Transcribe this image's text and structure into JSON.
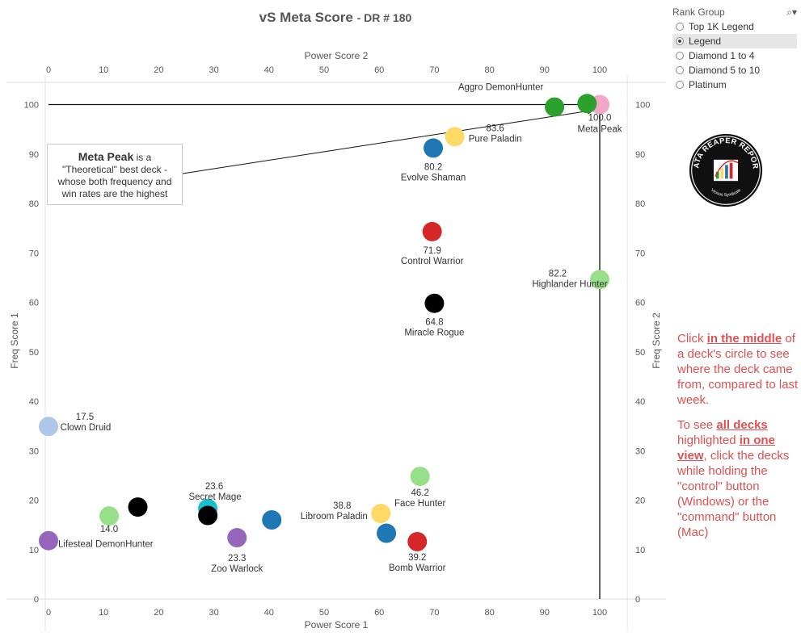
{
  "title": {
    "main": "vS Meta Score",
    "sub": "- DR # 180"
  },
  "filter": {
    "title": "Rank Group",
    "search_icon": "search-icon",
    "options": [
      {
        "label": "Top 1K Legend",
        "selected": false
      },
      {
        "label": "Legend",
        "selected": true
      },
      {
        "label": "Diamond 1 to 4",
        "selected": false
      },
      {
        "label": "Diamond 5 to 10",
        "selected": false
      },
      {
        "label": "Platinum",
        "selected": false
      }
    ]
  },
  "logo": {
    "top_text": "DATA REAPER REPORT",
    "bottom_text": "Vicious Syndicate"
  },
  "annotation": {
    "bold": "Meta Peak",
    "line1_rest": " is a",
    "line2": "\"Theoretical\" best deck -",
    "line3": "whose both frequency and",
    "line4": "win rates are the highest"
  },
  "instructions": {
    "p1": [
      {
        "text": "Click ",
        "em": false
      },
      {
        "text": "in the middle",
        "em": true
      },
      {
        "text": " of a deck's circle to see where the deck came from, compared to last week.",
        "em": false
      }
    ],
    "p2": [
      {
        "text": "To see ",
        "em": false
      },
      {
        "text": "all decks",
        "em": true
      },
      {
        "text": " highlighted ",
        "em": false
      },
      {
        "text": "in one view",
        "em": true
      },
      {
        "text": ", click the decks while holding the \"control\" button (Windows) or the \"command\" button (Mac)",
        "em": false
      }
    ]
  },
  "chart_data": {
    "type": "scatter",
    "xlabel": "Power Score 1",
    "x2label": "Power Score 2",
    "ylabel": "Freq Score 1",
    "y2label": "Freq Score 2",
    "xlim": [
      0,
      105
    ],
    "ylim": [
      0,
      105
    ],
    "xticks": [
      0,
      10,
      20,
      30,
      40,
      50,
      60,
      70,
      80,
      90,
      100
    ],
    "yticks": [
      0,
      10,
      20,
      30,
      40,
      50,
      60,
      70,
      80,
      90,
      100
    ],
    "reference_lines": {
      "x": 100,
      "y": 100
    },
    "points": [
      {
        "name": "Meta Peak",
        "score": "100.0",
        "x": 100,
        "y": 100,
        "color": "#f4a6c6"
      },
      {
        "name": "Aggro DemonHunter",
        "score": "",
        "x": 97.7,
        "y": 100.2,
        "color": "#2ca02c"
      },
      {
        "name": "",
        "score": "",
        "x": 91.8,
        "y": 99.5,
        "color": "#2ca02c"
      },
      {
        "name": "Pure Paladin",
        "score": "83.6",
        "x": 73.7,
        "y": 93.5,
        "color": "#ffd966"
      },
      {
        "name": "Evolve Shaman",
        "score": "80.2",
        "x": 69.8,
        "y": 91.2,
        "color": "#1f77b4"
      },
      {
        "name": "Control Warrior",
        "score": "71.9",
        "x": 69.6,
        "y": 74.3,
        "color": "#d62728"
      },
      {
        "name": "Highlander Hunter",
        "score": "82.2",
        "x": 100,
        "y": 64.6,
        "color": "#98df8a"
      },
      {
        "name": "Miracle Rogue",
        "score": "64.8",
        "x": 70.0,
        "y": 59.8,
        "color": "#000000"
      },
      {
        "name": "Clown Druid",
        "score": "17.5",
        "x": 0,
        "y": 34.9,
        "color": "#aec7e8"
      },
      {
        "name": "Face Hunter",
        "score": "46.2",
        "x": 67.4,
        "y": 24.8,
        "color": "#98df8a"
      },
      {
        "name": "Secret Mage",
        "score": "23.6",
        "x": 28.9,
        "y": 18.3,
        "color": "#17becf"
      },
      {
        "name": "",
        "score": "",
        "x": 28.9,
        "y": 16.9,
        "color": "#000000"
      },
      {
        "name": "",
        "score": "",
        "x": 16.2,
        "y": 18.6,
        "color": "#000000"
      },
      {
        "name": "",
        "score": "14.0",
        "x": 11.0,
        "y": 16.8,
        "color": "#98df8a"
      },
      {
        "name": "Libroom Paladin",
        "score": "38.8",
        "x": 60.3,
        "y": 17.3,
        "color": "#ffd966"
      },
      {
        "name": "",
        "score": "",
        "x": 40.5,
        "y": 16.0,
        "color": "#1f77b4"
      },
      {
        "name": "Zoo Warlock",
        "score": "23.3",
        "x": 34.2,
        "y": 12.4,
        "color": "#9467bd"
      },
      {
        "name": "",
        "score": "",
        "x": 61.3,
        "y": 13.3,
        "color": "#1f77b4"
      },
      {
        "name": "Bomb Warrior",
        "score": "39.2",
        "x": 66.9,
        "y": 11.6,
        "color": "#d62728"
      },
      {
        "name": "Lifesteal DemonHunter",
        "score": "",
        "x": 0,
        "y": 11.8,
        "color": "#9467bd"
      }
    ]
  }
}
